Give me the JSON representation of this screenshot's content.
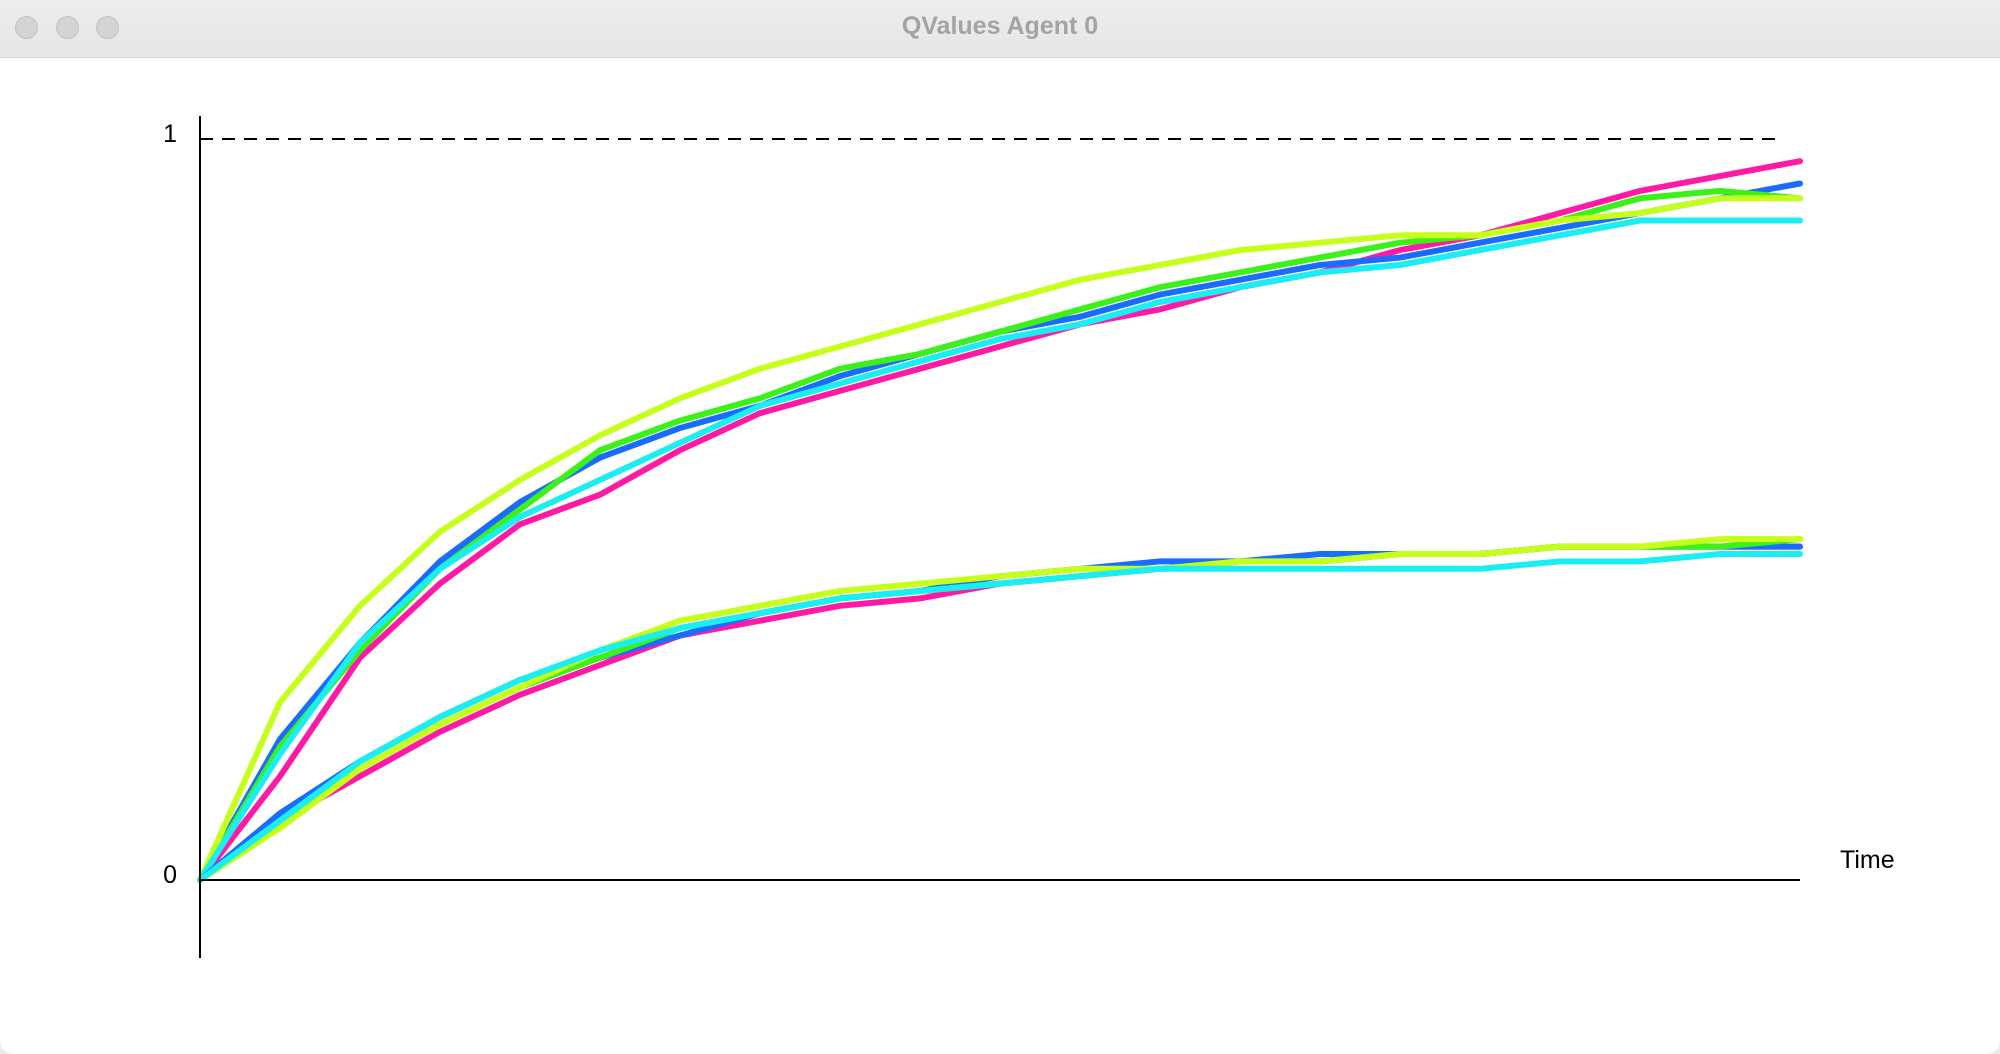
{
  "window": {
    "title": "QValues Agent 0"
  },
  "chart_data": {
    "type": "line",
    "title": "",
    "xlabel": "Time",
    "ylabel": "",
    "yticks": [
      "0",
      "1"
    ],
    "ylim": [
      0,
      1
    ],
    "xlim": [
      0,
      1
    ],
    "reference_line": {
      "y": 1,
      "style": "dashed"
    },
    "grid": false,
    "legend": "none",
    "series": [
      {
        "color": "#ff1aa6",
        "x": [
          0,
          0.05,
          0.1,
          0.15,
          0.2,
          0.25,
          0.3,
          0.35,
          0.4,
          0.45,
          0.5,
          0.55,
          0.6,
          0.65,
          0.7,
          0.75,
          0.8,
          0.85,
          0.9,
          0.95,
          1.0
        ],
        "y": [
          0,
          0.14,
          0.3,
          0.4,
          0.48,
          0.52,
          0.58,
          0.63,
          0.66,
          0.69,
          0.72,
          0.75,
          0.77,
          0.8,
          0.82,
          0.85,
          0.87,
          0.9,
          0.93,
          0.95,
          0.97
        ]
      },
      {
        "color": "#1a6cff",
        "x": [
          0,
          0.05,
          0.1,
          0.15,
          0.2,
          0.25,
          0.3,
          0.35,
          0.4,
          0.45,
          0.5,
          0.55,
          0.6,
          0.65,
          0.7,
          0.75,
          0.8,
          0.85,
          0.9,
          0.95,
          1.0
        ],
        "y": [
          0,
          0.19,
          0.32,
          0.43,
          0.51,
          0.57,
          0.61,
          0.64,
          0.68,
          0.71,
          0.74,
          0.76,
          0.79,
          0.81,
          0.83,
          0.84,
          0.86,
          0.88,
          0.9,
          0.92,
          0.94
        ]
      },
      {
        "color": "#3ef01a",
        "x": [
          0,
          0.05,
          0.1,
          0.15,
          0.2,
          0.25,
          0.3,
          0.35,
          0.4,
          0.45,
          0.5,
          0.55,
          0.6,
          0.65,
          0.7,
          0.75,
          0.8,
          0.85,
          0.9,
          0.95,
          1.0
        ],
        "y": [
          0,
          0.18,
          0.31,
          0.42,
          0.5,
          0.58,
          0.62,
          0.65,
          0.69,
          0.71,
          0.74,
          0.77,
          0.8,
          0.82,
          0.84,
          0.86,
          0.87,
          0.89,
          0.92,
          0.93,
          0.92
        ]
      },
      {
        "color": "#c6ff1a",
        "x": [
          0,
          0.05,
          0.1,
          0.15,
          0.2,
          0.25,
          0.3,
          0.35,
          0.4,
          0.45,
          0.5,
          0.55,
          0.6,
          0.65,
          0.7,
          0.75,
          0.8,
          0.85,
          0.9,
          0.95,
          1.0
        ],
        "y": [
          0,
          0.24,
          0.37,
          0.47,
          0.54,
          0.6,
          0.65,
          0.69,
          0.72,
          0.75,
          0.78,
          0.81,
          0.83,
          0.85,
          0.86,
          0.87,
          0.87,
          0.89,
          0.9,
          0.92,
          0.92
        ]
      },
      {
        "color": "#1aeef2",
        "x": [
          0,
          0.05,
          0.1,
          0.15,
          0.2,
          0.25,
          0.3,
          0.35,
          0.4,
          0.45,
          0.5,
          0.55,
          0.6,
          0.65,
          0.7,
          0.75,
          0.8,
          0.85,
          0.9,
          0.95,
          1.0
        ],
        "y": [
          0,
          0.17,
          0.32,
          0.42,
          0.49,
          0.54,
          0.59,
          0.64,
          0.67,
          0.7,
          0.73,
          0.75,
          0.78,
          0.8,
          0.82,
          0.83,
          0.85,
          0.87,
          0.89,
          0.89,
          0.89
        ]
      },
      {
        "color": "#ff1aa6",
        "x": [
          0,
          0.05,
          0.1,
          0.15,
          0.2,
          0.25,
          0.3,
          0.35,
          0.4,
          0.45,
          0.5,
          0.55,
          0.6,
          0.65,
          0.7,
          0.75,
          0.8,
          0.85,
          0.9,
          0.95,
          1.0
        ],
        "y": [
          0,
          0.08,
          0.14,
          0.2,
          0.25,
          0.29,
          0.33,
          0.35,
          0.37,
          0.38,
          0.4,
          0.41,
          0.42,
          0.43,
          0.43,
          0.44,
          0.44,
          0.45,
          0.45,
          0.45,
          0.45
        ]
      },
      {
        "color": "#1a6cff",
        "x": [
          0,
          0.05,
          0.1,
          0.15,
          0.2,
          0.25,
          0.3,
          0.35,
          0.4,
          0.45,
          0.5,
          0.55,
          0.6,
          0.65,
          0.7,
          0.75,
          0.8,
          0.85,
          0.9,
          0.95,
          1.0
        ],
        "y": [
          0,
          0.09,
          0.16,
          0.22,
          0.27,
          0.3,
          0.33,
          0.36,
          0.38,
          0.39,
          0.41,
          0.42,
          0.43,
          0.43,
          0.44,
          0.44,
          0.44,
          0.45,
          0.45,
          0.45,
          0.45
        ]
      },
      {
        "color": "#3ef01a",
        "x": [
          0,
          0.05,
          0.1,
          0.15,
          0.2,
          0.25,
          0.3,
          0.35,
          0.4,
          0.45,
          0.5,
          0.55,
          0.6,
          0.65,
          0.7,
          0.75,
          0.8,
          0.85,
          0.9,
          0.95,
          1.0
        ],
        "y": [
          0,
          0.08,
          0.15,
          0.21,
          0.26,
          0.3,
          0.34,
          0.36,
          0.38,
          0.39,
          0.4,
          0.41,
          0.42,
          0.43,
          0.43,
          0.44,
          0.44,
          0.45,
          0.45,
          0.45,
          0.46
        ]
      },
      {
        "color": "#c6ff1a",
        "x": [
          0,
          0.05,
          0.1,
          0.15,
          0.2,
          0.25,
          0.3,
          0.35,
          0.4,
          0.45,
          0.5,
          0.55,
          0.6,
          0.65,
          0.7,
          0.75,
          0.8,
          0.85,
          0.9,
          0.95,
          1.0
        ],
        "y": [
          0,
          0.07,
          0.15,
          0.21,
          0.26,
          0.31,
          0.35,
          0.37,
          0.39,
          0.4,
          0.41,
          0.42,
          0.42,
          0.43,
          0.43,
          0.44,
          0.44,
          0.45,
          0.45,
          0.46,
          0.46
        ]
      },
      {
        "color": "#1aeef2",
        "x": [
          0,
          0.05,
          0.1,
          0.15,
          0.2,
          0.25,
          0.3,
          0.35,
          0.4,
          0.45,
          0.5,
          0.55,
          0.6,
          0.65,
          0.7,
          0.75,
          0.8,
          0.85,
          0.9,
          0.95,
          1.0
        ],
        "y": [
          0,
          0.08,
          0.16,
          0.22,
          0.27,
          0.31,
          0.34,
          0.36,
          0.38,
          0.39,
          0.4,
          0.41,
          0.42,
          0.42,
          0.42,
          0.42,
          0.42,
          0.43,
          0.43,
          0.44,
          0.44
        ]
      }
    ]
  }
}
